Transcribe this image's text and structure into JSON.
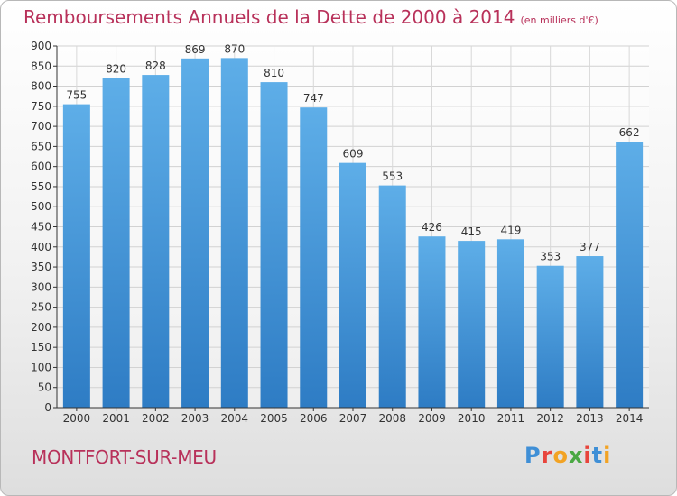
{
  "title": "Remboursements Annuels de la Dette de 2000 à 2014",
  "unit_note": "(en milliers d'€)",
  "commune": "MONTFORT-SUR-MEU",
  "logo": "Proxiti",
  "colors": {
    "title": "#b8315a",
    "bar_top": "#5eaee8",
    "bar_bottom": "#2e7cc4"
  },
  "chart_data": {
    "type": "bar",
    "title": "Remboursements Annuels de la Dette de 2000 à 2014",
    "categories": [
      "2000",
      "2001",
      "2002",
      "2003",
      "2004",
      "2005",
      "2006",
      "2007",
      "2008",
      "2009",
      "2010",
      "2011",
      "2012",
      "2013",
      "2014"
    ],
    "values": [
      755,
      820,
      828,
      869,
      870,
      810,
      747,
      609,
      553,
      426,
      415,
      419,
      353,
      377,
      662
    ],
    "xlabel": "",
    "ylabel": "",
    "ylim": [
      0,
      900
    ],
    "ytick_step": 50,
    "grid": true,
    "data_labels": true
  }
}
